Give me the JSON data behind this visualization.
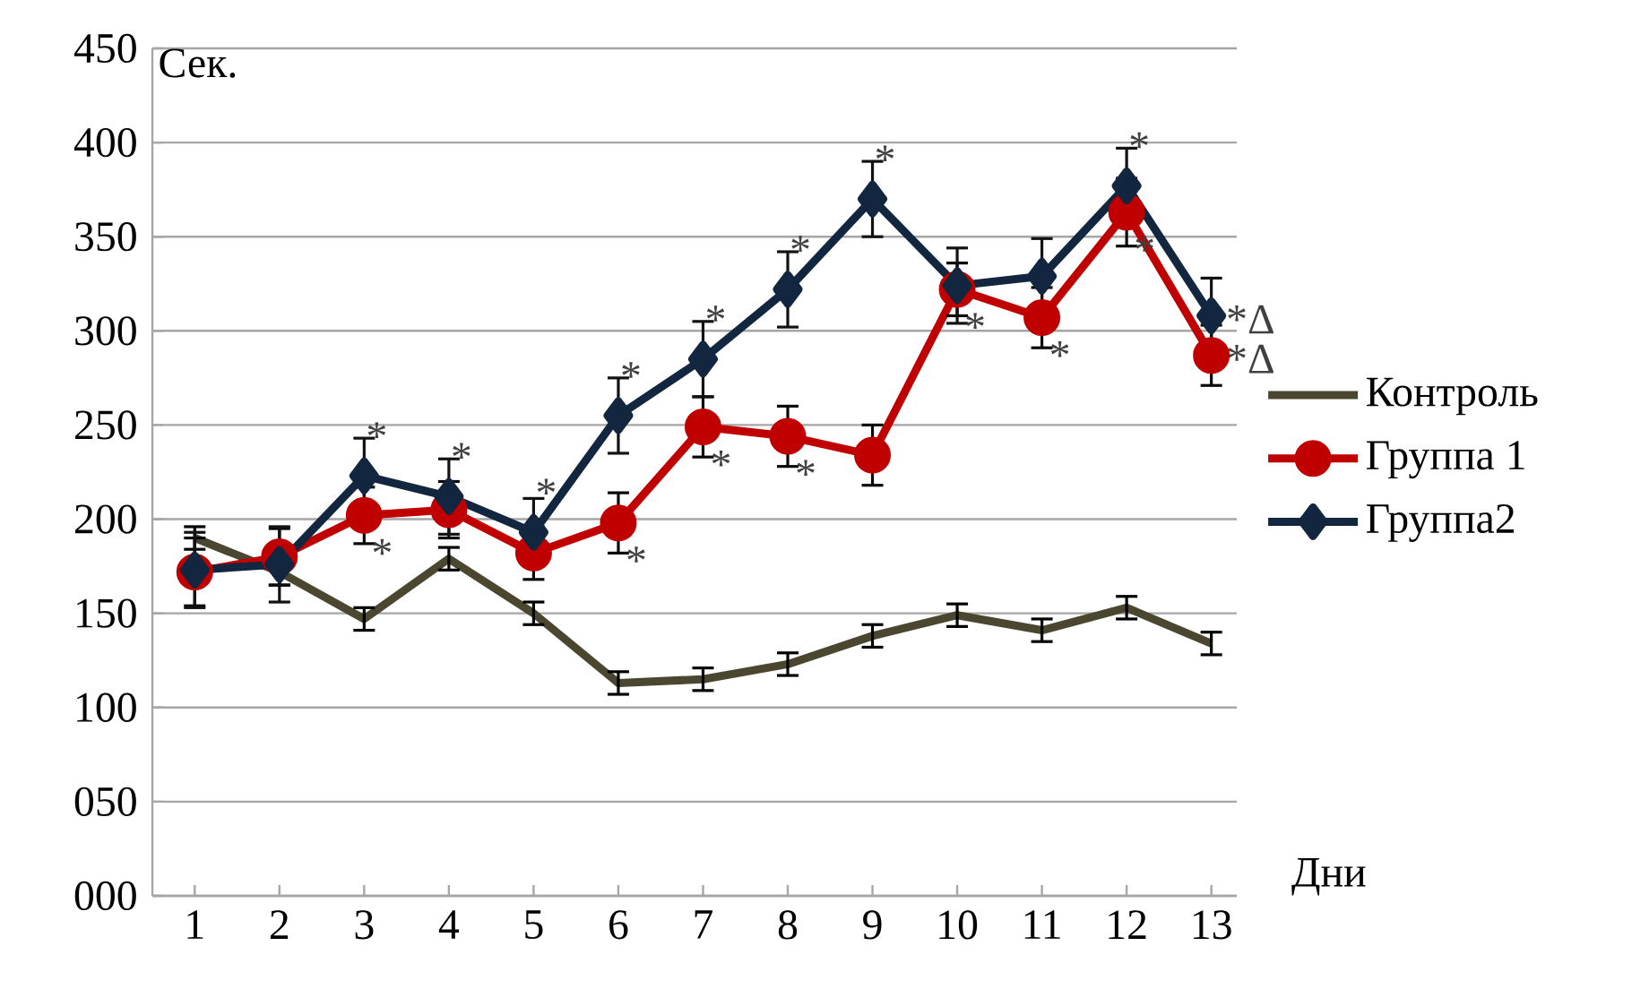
{
  "chart_data": {
    "type": "line",
    "xlabel": "Дни",
    "ylabel": "Сек.",
    "x": [
      1,
      2,
      3,
      4,
      5,
      6,
      7,
      8,
      9,
      10,
      11,
      12,
      13
    ],
    "xlim": [
      0.5,
      13.3
    ],
    "xticks": [
      1,
      2,
      3,
      4,
      5,
      6,
      7,
      8,
      9,
      10,
      11,
      12,
      13
    ],
    "ylim": [
      0,
      450
    ],
    "yticks": [
      {
        "value": 0,
        "label": "000"
      },
      {
        "value": 50,
        "label": "050"
      },
      100,
      150,
      200,
      250,
      300,
      350,
      400,
      450
    ],
    "grid": "y",
    "legend": "right",
    "series": [
      {
        "name": "Контроль",
        "color": "#4b4630",
        "marker": "none",
        "values": [
          190,
          172,
          147,
          179,
          150,
          113,
          115,
          123,
          138,
          149,
          141,
          153,
          134
        ],
        "errors": [
          6,
          7,
          6,
          6,
          6,
          6,
          6,
          6,
          6,
          6,
          6,
          6,
          6
        ]
      },
      {
        "name": "Группа 1",
        "color": "#c00000",
        "marker": "circle",
        "values": [
          172,
          180,
          202,
          205,
          182,
          198,
          249,
          244,
          234,
          322,
          307,
          363,
          287
        ],
        "errors": [
          18,
          15,
          15,
          15,
          14,
          16,
          16,
          16,
          16,
          14,
          16,
          18,
          16
        ]
      },
      {
        "name": "Группа2",
        "color": "#12263f",
        "marker": "diamond",
        "values": [
          173,
          176,
          223,
          212,
          193,
          255,
          285,
          322,
          370,
          324,
          329,
          377,
          308
        ],
        "errors": [
          20,
          20,
          20,
          20,
          18,
          20,
          20,
          20,
          20,
          20,
          20,
          20,
          20
        ]
      }
    ],
    "annotations": [
      {
        "text": "*",
        "x": 3,
        "y": 223
      },
      {
        "text": "*",
        "x": 3,
        "y": 202
      },
      {
        "text": "*",
        "x": 4,
        "y": 212
      },
      {
        "text": "*",
        "x": 5,
        "y": 193
      },
      {
        "text": "*",
        "x": 6,
        "y": 255
      },
      {
        "text": "*",
        "x": 6,
        "y": 198
      },
      {
        "text": "*",
        "x": 7,
        "y": 285
      },
      {
        "text": "*",
        "x": 7,
        "y": 249
      },
      {
        "text": "*",
        "x": 8,
        "y": 322
      },
      {
        "text": "*",
        "x": 8,
        "y": 244
      },
      {
        "text": "*",
        "x": 9,
        "y": 370
      },
      {
        "text": "*",
        "x": 10,
        "y": 322
      },
      {
        "text": "*",
        "x": 11,
        "y": 307
      },
      {
        "text": "*",
        "x": 12,
        "y": 363
      },
      {
        "text": "*",
        "x": 12,
        "y": 377
      },
      {
        "text": "*Δ",
        "x": 13,
        "y": 308
      },
      {
        "text": "*Δ",
        "x": 13,
        "y": 287
      }
    ]
  }
}
